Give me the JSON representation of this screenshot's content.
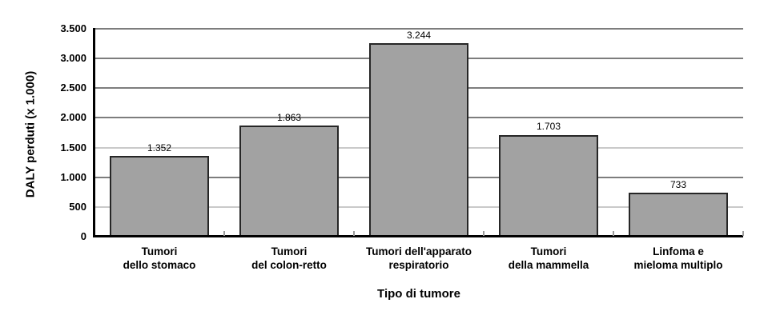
{
  "chart_data": {
    "type": "bar",
    "title": "",
    "xlabel": "Tipo di tumore",
    "ylabel": "DALY perduti (x 1.000)",
    "categories": [
      "Tumori\ndello stomaco",
      "Tumori\ndel colon-retto",
      "Tumori dell'apparato\nrespiratorio",
      "Tumori\ndella mammella",
      "Linfoma e\nmieloma multiplo"
    ],
    "values": [
      1352,
      1863,
      3244,
      1703,
      733
    ],
    "value_labels": [
      "1.352",
      "1.863",
      "3.244",
      "1.703",
      "733"
    ],
    "ylim": [
      0,
      3500
    ],
    "y_ticks": [
      {
        "label": "3.500",
        "value": 3500,
        "shade": "dark"
      },
      {
        "label": "3.000",
        "value": 3000,
        "shade": "dark"
      },
      {
        "label": "2.500",
        "value": 2500,
        "shade": "dark"
      },
      {
        "label": "2.000",
        "value": 2000,
        "shade": "dark"
      },
      {
        "label": "1.500",
        "value": 1500,
        "shade": "light"
      },
      {
        "label": "1.000",
        "value": 1000,
        "shade": "dark"
      },
      {
        "label": "500",
        "value": 500,
        "shade": "light"
      },
      {
        "label": "0",
        "value": 0,
        "shade": "axis"
      }
    ],
    "grid": true,
    "legend_position": "none",
    "bar_color": "#a2a2a2",
    "bar_border_color": "#262626",
    "axis_color": "#000000",
    "gridline_dark_color": "#7d7d7d",
    "gridline_light_color": "#c9c9c9",
    "tick_color": "#9a9a9a",
    "background_color": "#ffffff"
  }
}
